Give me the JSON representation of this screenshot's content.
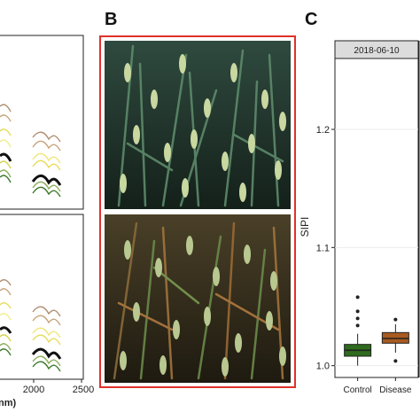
{
  "panels": {
    "b_letter": "B",
    "c_letter": "C"
  },
  "panel_a": {
    "x_ticks": [
      "2000",
      "2500"
    ],
    "x_label_fragment": "nm)"
  },
  "panel_c": {
    "facet_label": "2018-06-10",
    "colors": {
      "control": "#2e6b1e",
      "disease": "#a85a1f"
    }
  },
  "chart_data": [
    {
      "type": "box",
      "title": "2018-06-10",
      "ylabel": "SIPI",
      "xlabel": "",
      "categories": [
        "Control",
        "Disease"
      ],
      "ylim": [
        0.99,
        1.26
      ],
      "yticks": [
        "1.0",
        "1.1",
        "1.2"
      ],
      "grid": true,
      "boxes": [
        {
          "name": "Control",
          "min": 1.0,
          "q1": 1.008,
          "median": 1.013,
          "q3": 1.018,
          "max": 1.027,
          "outliers": [
            1.034,
            1.04,
            1.046,
            1.058
          ]
        },
        {
          "name": "Disease",
          "min": 1.011,
          "q1": 1.019,
          "median": 1.023,
          "q3": 1.028,
          "max": 1.035,
          "outliers": [
            1.039,
            1.004
          ]
        }
      ]
    }
  ]
}
